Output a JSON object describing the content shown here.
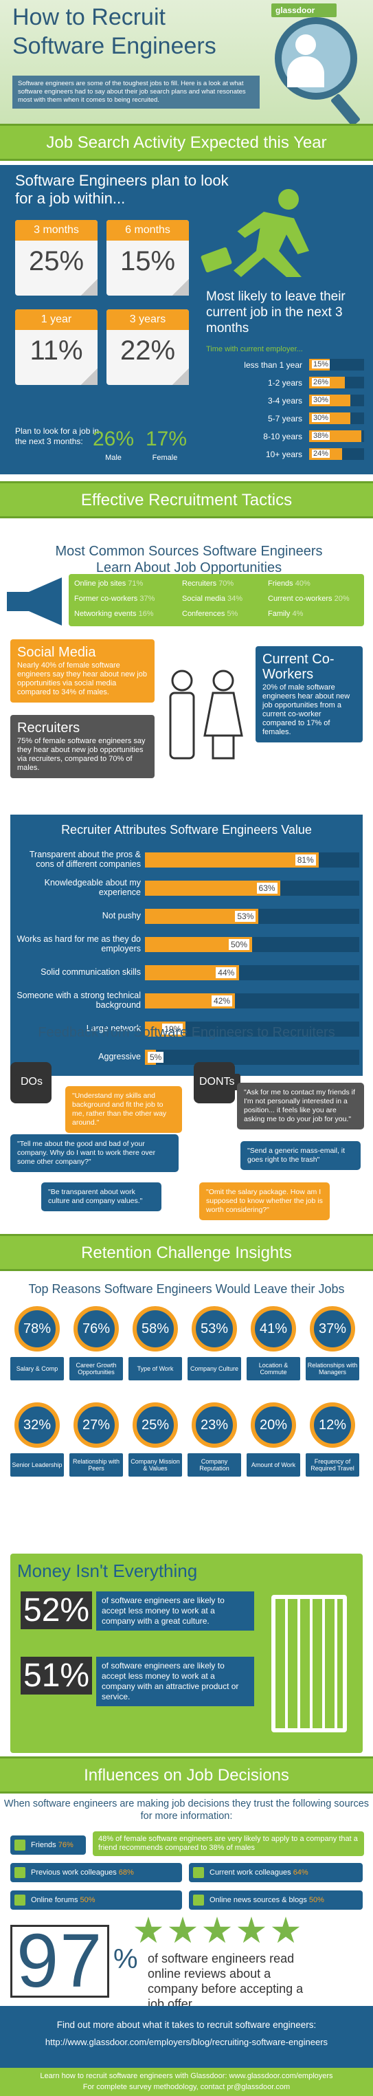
{
  "header": {
    "title_line1": "How to Recruit",
    "title_line2": "Software Engineers",
    "logo": "glassdoor",
    "intro": "Software engineers are some of the toughest jobs to fill. Here is a look at what software engineers had to say about their job search plans and what resonates most with them when it comes to being recruited."
  },
  "job_search": {
    "section_title": "Job Search Activity Expected this Year",
    "plan_title": "Software Engineers plan to look for a job within...",
    "calendars": [
      {
        "label": "3 months",
        "value": "25%"
      },
      {
        "label": "6 months",
        "value": "15%"
      },
      {
        "label": "1 year",
        "value": "11%"
      },
      {
        "label": "3 years",
        "value": "22%"
      }
    ],
    "plan_3mo_text": "Plan to look for a job in the next 3 months:",
    "male_pct": "26%",
    "male_label": "Male",
    "female_pct": "17%",
    "female_label": "Female",
    "likely_title": "Most likely to leave their current job in the next 3 months",
    "tenure_label": "Time with current employer...",
    "tenure": [
      {
        "label": "less than 1 year",
        "value": "15%",
        "pct": 15
      },
      {
        "label": "1-2 years",
        "value": "26%",
        "pct": 26
      },
      {
        "label": "3-4 years",
        "value": "30%",
        "pct": 30
      },
      {
        "label": "5-7 years",
        "value": "30%",
        "pct": 30
      },
      {
        "label": "8-10 years",
        "value": "38%",
        "pct": 38
      },
      {
        "label": "10+ years",
        "value": "24%",
        "pct": 24
      }
    ]
  },
  "tactics": {
    "section_title": "Effective Recruitment Tactics",
    "sources_title": "Most Common Sources Software Engineers Learn About Job Opportunities",
    "sources": [
      {
        "name": "Online job sites",
        "value": "71%"
      },
      {
        "name": "Recruiters",
        "value": "70%"
      },
      {
        "name": "Friends",
        "value": "40%"
      },
      {
        "name": "Former co-workers",
        "value": "37%"
      },
      {
        "name": "Social media",
        "value": "34%"
      },
      {
        "name": "Current co-workers",
        "value": "20%"
      },
      {
        "name": "Networking events",
        "value": "16%"
      },
      {
        "name": "Conferences",
        "value": "5%"
      },
      {
        "name": "Family",
        "value": "4%"
      }
    ],
    "social_title": "Social Media",
    "social_text": "Nearly 40% of female software engineers say they hear about new job opportunities via social media compared to 34% of males.",
    "recruiters_title": "Recruiters",
    "recruiters_text": "75% of female software engineers say they hear about new job opportunities via recruiters, compared to 70% of males.",
    "coworkers_title": "Current Co-Workers",
    "coworkers_text": "20% of male software engineers hear about new job opportunities from a current co-worker compared to 17% of females.",
    "attributes_title": "Recruiter Attributes Software Engineers Value",
    "attributes": [
      {
        "label": "Transparent about the pros & cons of different companies",
        "value": "81%",
        "pct": 81
      },
      {
        "label": "Knowledgeable about my experience",
        "value": "63%",
        "pct": 63
      },
      {
        "label": "Not pushy",
        "value": "53%",
        "pct": 53
      },
      {
        "label": "Works as hard for me as they do employers",
        "value": "50%",
        "pct": 50
      },
      {
        "label": "Solid communication skills",
        "value": "44%",
        "pct": 44
      },
      {
        "label": "Someone with a strong technical background",
        "value": "42%",
        "pct": 42
      },
      {
        "label": "Large network",
        "value": "19%",
        "pct": 19
      },
      {
        "label": "Aggressive",
        "value": "5%",
        "pct": 5
      }
    ]
  },
  "feedback": {
    "title": "Feedback from Software Engineers to Recruiters",
    "dos_label": "DOs",
    "donts_label": "DONTs",
    "dos": [
      "\"Understand my skills and background and fit the job to me, rather than the other way around.\"",
      "\"Tell me about the good and bad of your company. Why do I want to work there over some other company?\"",
      "\"Be transparent about work culture and company values.\""
    ],
    "donts": [
      "\"Ask for me to contact my friends if I'm not personally interested in a position... it feels like you are asking me to do your job for you.\"",
      "\"Send a generic mass-email, it goes right to the trash\"",
      "\"Omit the salary package. How am I supposed to know whether the job is worth considering?\""
    ]
  },
  "retention": {
    "section_title": "Retention Challenge Insights",
    "reasons_title": "Top Reasons Software Engineers Would Leave their Jobs",
    "reasons": [
      {
        "value": "78%",
        "label": "Salary & Comp"
      },
      {
        "value": "76%",
        "label": "Career Growth Opportunities"
      },
      {
        "value": "58%",
        "label": "Type of Work"
      },
      {
        "value": "53%",
        "label": "Company Culture"
      },
      {
        "value": "41%",
        "label": "Location & Commute"
      },
      {
        "value": "37%",
        "label": "Relationships with Managers"
      },
      {
        "value": "32%",
        "label": "Senior Leadership"
      },
      {
        "value": "27%",
        "label": "Relationship with Peers"
      },
      {
        "value": "25%",
        "label": "Company Mission & Values"
      },
      {
        "value": "23%",
        "label": "Company Reputation"
      },
      {
        "value": "20%",
        "label": "Amount of Work"
      },
      {
        "value": "12%",
        "label": "Frequency of Required Travel"
      }
    ],
    "money_title": "Money Isn't Everything",
    "money": [
      {
        "value": "52%",
        "text": "of software engineers are likely to accept less money to work at a company with a great culture."
      },
      {
        "value": "51%",
        "text": "of software engineers are likely to accept less money to work at a company with an attractive product or service."
      }
    ]
  },
  "influences": {
    "section_title": "Influences on Job Decisions",
    "intro": "When software engineers are making job decisions they trust the following sources for more information:",
    "note": "48% of female software engineers are very likely to apply to a company that a friend recommends compared to 38% of males",
    "items": [
      {
        "name": "Friends",
        "value": "76%"
      },
      {
        "name": "Previous work colleagues",
        "value": "68%"
      },
      {
        "name": "Current work colleagues",
        "value": "64%"
      },
      {
        "name": "Online forums",
        "value": "50%"
      },
      {
        "name": "Online news sources & blogs",
        "value": "50%"
      }
    ],
    "big_number": "97",
    "big_pct": "%",
    "big_text": "of software engineers read online reviews about a company before accepting a job offer"
  },
  "footer": {
    "line1": "Find out more about what it takes to recruit software engineers:",
    "line2": "http://www.glassdoor.com/employers/blog/recruiting-software-engineers",
    "line3": "Learn how to recruit software engineers with Glassdoor: www.glassdoor.com/employers",
    "line4": "For complete survey methodology, contact pr@glassdoor.com"
  }
}
